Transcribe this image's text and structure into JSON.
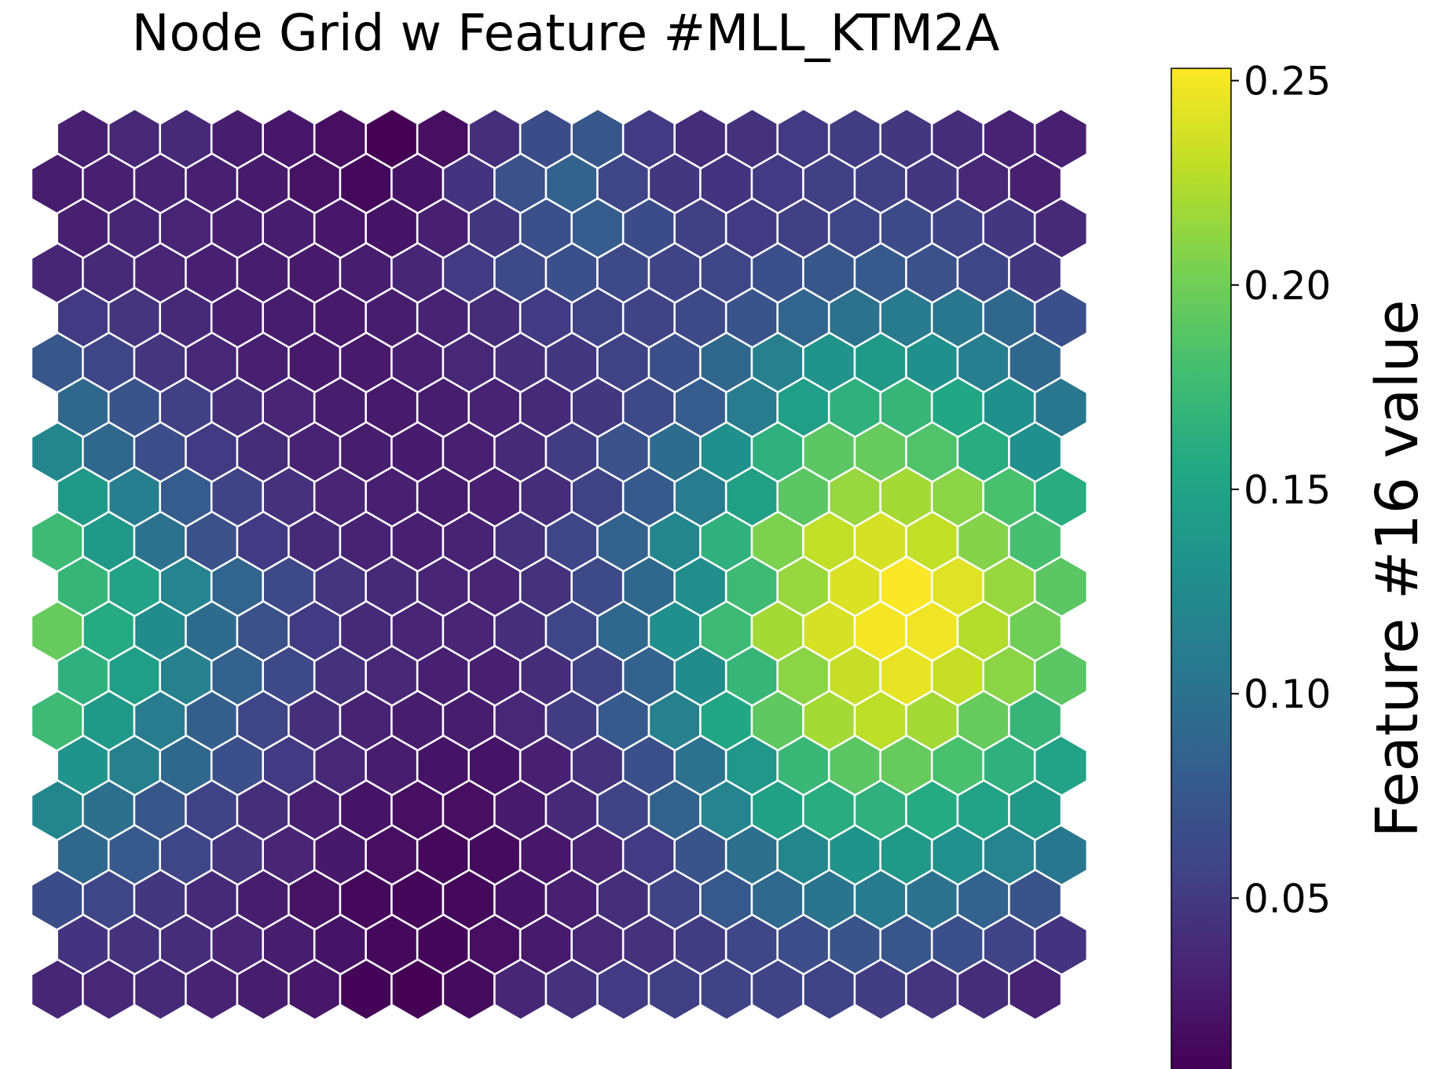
{
  "chart_data": {
    "type": "heatmap",
    "title": "Node Grid w Feature #MLL_KTM2A",
    "colorbar_label": "Feature #16 value",
    "colormap": "viridis",
    "value_range": [
      0.008,
      0.253
    ],
    "colorbar_ticks": [
      "0.05",
      "0.10",
      "0.15",
      "0.20",
      "0.25"
    ],
    "colorbar_tick_values": [
      0.05,
      0.1,
      0.15,
      0.2,
      0.25
    ],
    "grid_shape": [
      20,
      20
    ],
    "grid_layout": "hexagonal, rows top-to-bottom, odd rows offset",
    "grid": [
      [
        0.03,
        0.036,
        0.038,
        0.028,
        0.024,
        0.018,
        0.008,
        0.018,
        0.042,
        0.065,
        0.075,
        0.05,
        0.04,
        0.044,
        0.05,
        0.052,
        0.048,
        0.04,
        0.032,
        0.03
      ],
      [
        0.028,
        0.03,
        0.032,
        0.03,
        0.026,
        0.02,
        0.014,
        0.022,
        0.045,
        0.07,
        0.085,
        0.06,
        0.048,
        0.045,
        0.05,
        0.055,
        0.055,
        0.048,
        0.036,
        0.03
      ],
      [
        0.03,
        0.035,
        0.033,
        0.03,
        0.028,
        0.024,
        0.022,
        0.03,
        0.048,
        0.068,
        0.08,
        0.065,
        0.055,
        0.05,
        0.055,
        0.06,
        0.064,
        0.058,
        0.048,
        0.038
      ],
      [
        0.035,
        0.038,
        0.034,
        0.03,
        0.028,
        0.026,
        0.028,
        0.035,
        0.05,
        0.062,
        0.068,
        0.062,
        0.058,
        0.06,
        0.068,
        0.075,
        0.078,
        0.07,
        0.06,
        0.048
      ],
      [
        0.05,
        0.046,
        0.038,
        0.03,
        0.028,
        0.026,
        0.028,
        0.032,
        0.04,
        0.05,
        0.056,
        0.058,
        0.062,
        0.072,
        0.088,
        0.1,
        0.108,
        0.105,
        0.09,
        0.068
      ],
      [
        0.075,
        0.06,
        0.046,
        0.036,
        0.03,
        0.026,
        0.026,
        0.03,
        0.036,
        0.042,
        0.048,
        0.056,
        0.068,
        0.09,
        0.115,
        0.135,
        0.14,
        0.13,
        0.112,
        0.09
      ],
      [
        0.09,
        0.072,
        0.055,
        0.042,
        0.034,
        0.028,
        0.026,
        0.028,
        0.032,
        0.038,
        0.048,
        0.062,
        0.08,
        0.11,
        0.145,
        0.165,
        0.17,
        0.155,
        0.13,
        0.105
      ],
      [
        0.12,
        0.09,
        0.066,
        0.05,
        0.04,
        0.032,
        0.028,
        0.027,
        0.03,
        0.038,
        0.052,
        0.07,
        0.095,
        0.13,
        0.165,
        0.19,
        0.195,
        0.185,
        0.16,
        0.13
      ],
      [
        0.14,
        0.112,
        0.08,
        0.058,
        0.044,
        0.034,
        0.03,
        0.028,
        0.03,
        0.04,
        0.056,
        0.078,
        0.11,
        0.148,
        0.19,
        0.215,
        0.22,
        0.21,
        0.182,
        0.16
      ],
      [
        0.175,
        0.14,
        0.1,
        0.07,
        0.05,
        0.038,
        0.032,
        0.03,
        0.032,
        0.044,
        0.06,
        0.085,
        0.12,
        0.165,
        0.205,
        0.23,
        0.238,
        0.23,
        0.208,
        0.18
      ],
      [
        0.17,
        0.15,
        0.118,
        0.088,
        0.062,
        0.046,
        0.038,
        0.034,
        0.034,
        0.044,
        0.062,
        0.09,
        0.128,
        0.175,
        0.215,
        0.24,
        0.252,
        0.242,
        0.215,
        0.19
      ],
      [
        0.195,
        0.158,
        0.125,
        0.095,
        0.07,
        0.05,
        0.038,
        0.034,
        0.034,
        0.042,
        0.06,
        0.09,
        0.13,
        0.175,
        0.22,
        0.238,
        0.25,
        0.248,
        0.225,
        0.2
      ],
      [
        0.165,
        0.145,
        0.115,
        0.085,
        0.062,
        0.044,
        0.036,
        0.03,
        0.03,
        0.04,
        0.058,
        0.085,
        0.125,
        0.17,
        0.21,
        0.232,
        0.245,
        0.232,
        0.21,
        0.19
      ],
      [
        0.175,
        0.14,
        0.11,
        0.082,
        0.06,
        0.042,
        0.032,
        0.028,
        0.028,
        0.036,
        0.052,
        0.078,
        0.115,
        0.155,
        0.192,
        0.22,
        0.228,
        0.22,
        0.195,
        0.17
      ],
      [
        0.135,
        0.115,
        0.09,
        0.068,
        0.05,
        0.036,
        0.028,
        0.022,
        0.022,
        0.03,
        0.044,
        0.068,
        0.1,
        0.138,
        0.172,
        0.19,
        0.195,
        0.182,
        0.165,
        0.15
      ],
      [
        0.12,
        0.098,
        0.075,
        0.056,
        0.042,
        0.03,
        0.022,
        0.018,
        0.018,
        0.026,
        0.038,
        0.058,
        0.086,
        0.118,
        0.148,
        0.16,
        0.165,
        0.158,
        0.15,
        0.14
      ],
      [
        0.09,
        0.078,
        0.06,
        0.046,
        0.034,
        0.025,
        0.018,
        0.014,
        0.016,
        0.024,
        0.034,
        0.05,
        0.072,
        0.098,
        0.12,
        0.135,
        0.14,
        0.132,
        0.118,
        0.105
      ],
      [
        0.065,
        0.06,
        0.048,
        0.038,
        0.028,
        0.02,
        0.014,
        0.012,
        0.014,
        0.022,
        0.03,
        0.042,
        0.058,
        0.076,
        0.092,
        0.102,
        0.108,
        0.1,
        0.085,
        0.072
      ],
      [
        0.045,
        0.044,
        0.04,
        0.034,
        0.028,
        0.022,
        0.014,
        0.012,
        0.018,
        0.026,
        0.036,
        0.044,
        0.052,
        0.06,
        0.066,
        0.072,
        0.074,
        0.068,
        0.058,
        0.045
      ],
      [
        0.035,
        0.036,
        0.038,
        0.032,
        0.028,
        0.024,
        0.01,
        0.008,
        0.016,
        0.035,
        0.044,
        0.05,
        0.055,
        0.058,
        0.058,
        0.056,
        0.052,
        0.046,
        0.04,
        0.032
      ]
    ],
    "grid_on": false,
    "legend": "colorbar at right"
  }
}
